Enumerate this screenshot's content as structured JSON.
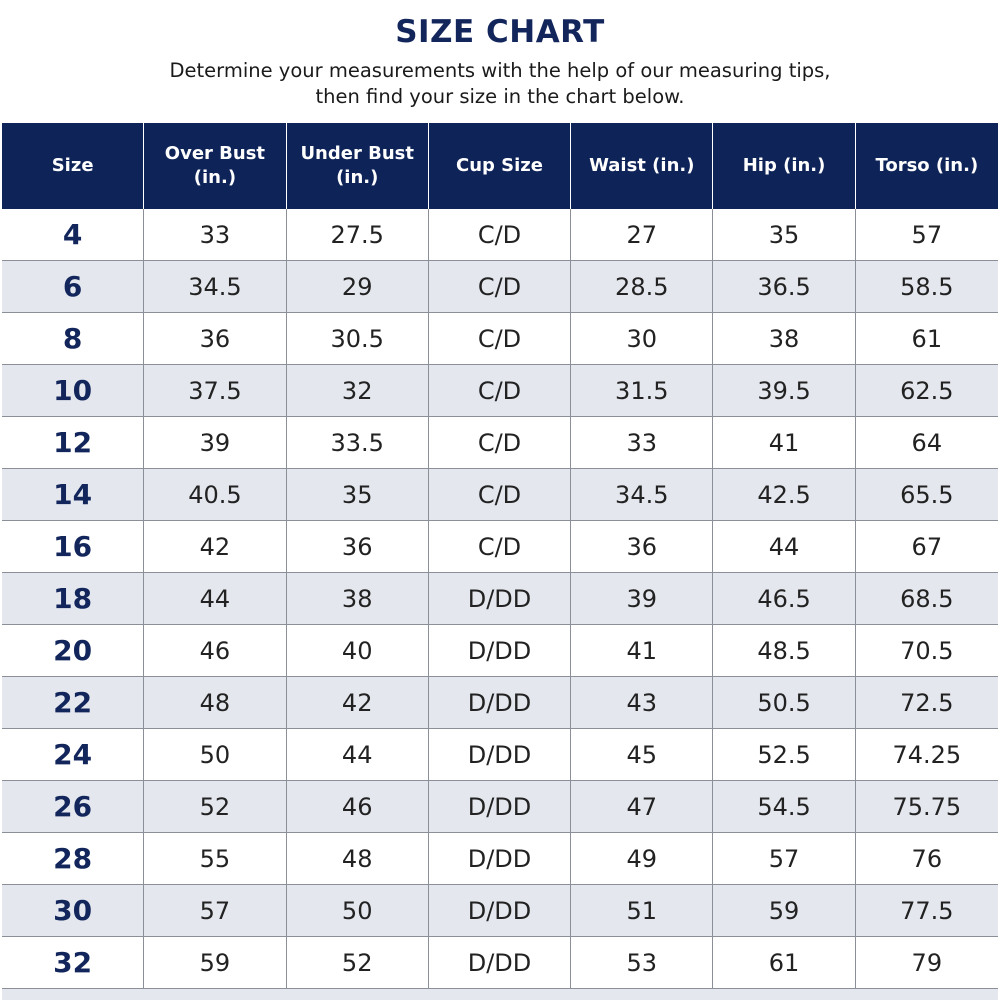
{
  "header": {
    "title": "SIZE CHART",
    "subtitle_lines": [
      "Determine your measurements with the help of our measuring tips,",
      "then find your size in the chart below."
    ]
  },
  "table": {
    "columns": [
      [
        "Size"
      ],
      [
        "Over Bust",
        "(in.)"
      ],
      [
        "Under Bust",
        "(in.)"
      ],
      [
        "Cup Size"
      ],
      [
        "Waist (in.)"
      ],
      [
        "Hip (in.)"
      ],
      [
        "Torso (in.)"
      ]
    ],
    "rows": [
      [
        "4",
        "33",
        "27.5",
        "C/D",
        "27",
        "35",
        "57"
      ],
      [
        "6",
        "34.5",
        "29",
        "C/D",
        "28.5",
        "36.5",
        "58.5"
      ],
      [
        "8",
        "36",
        "30.5",
        "C/D",
        "30",
        "38",
        "61"
      ],
      [
        "10",
        "37.5",
        "32",
        "C/D",
        "31.5",
        "39.5",
        "62.5"
      ],
      [
        "12",
        "39",
        "33.5",
        "C/D",
        "33",
        "41",
        "64"
      ],
      [
        "14",
        "40.5",
        "35",
        "C/D",
        "34.5",
        "42.5",
        "65.5"
      ],
      [
        "16",
        "42",
        "36",
        "C/D",
        "36",
        "44",
        "67"
      ],
      [
        "18",
        "44",
        "38",
        "D/DD",
        "39",
        "46.5",
        "68.5"
      ],
      [
        "20",
        "46",
        "40",
        "D/DD",
        "41",
        "48.5",
        "70.5"
      ],
      [
        "22",
        "48",
        "42",
        "D/DD",
        "43",
        "50.5",
        "72.5"
      ],
      [
        "24",
        "50",
        "44",
        "D/DD",
        "45",
        "52.5",
        "74.25"
      ],
      [
        "26",
        "52",
        "46",
        "D/DD",
        "47",
        "54.5",
        "75.75"
      ],
      [
        "28",
        "55",
        "48",
        "D/DD",
        "49",
        "57",
        "76"
      ],
      [
        "30",
        "57",
        "50",
        "D/DD",
        "51",
        "59",
        "77.5"
      ],
      [
        "32",
        "59",
        "52",
        "D/DD",
        "53",
        "61",
        "79"
      ]
    ]
  }
}
